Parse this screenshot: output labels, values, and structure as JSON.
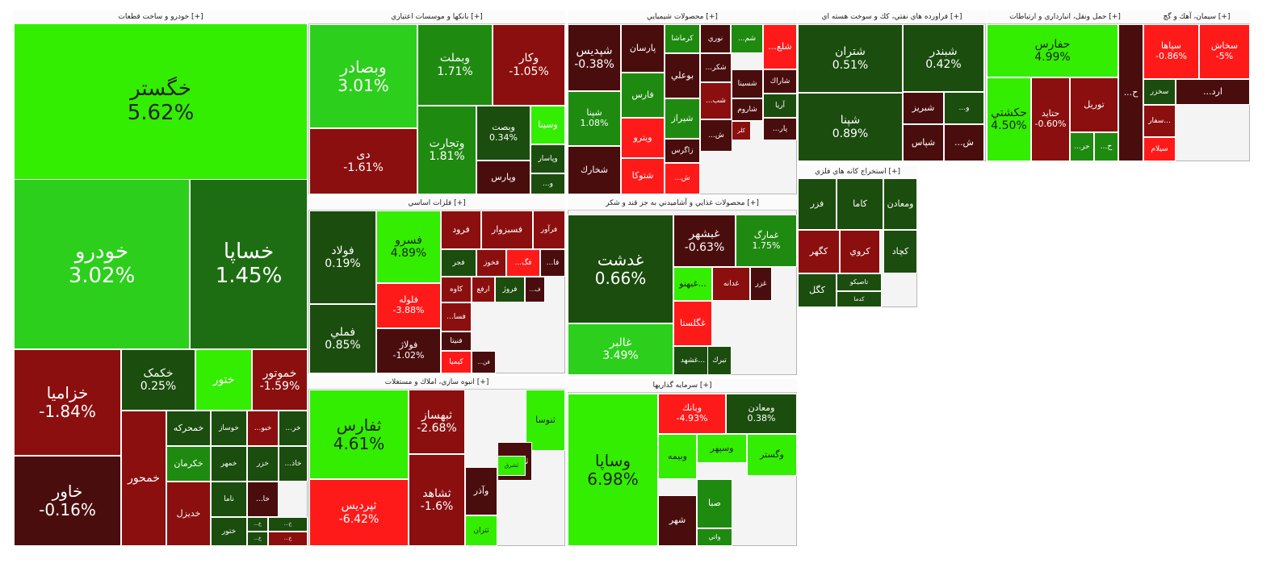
{
  "chart_data": {
    "type": "treemap",
    "title": "",
    "color_scale": {
      "positive_max": "#33ee00",
      "positive_mid": "#1f8a10",
      "neutral": "#1b4d0e",
      "negative_mid": "#7a0a0a",
      "negative_max": "#ff1a1a"
    },
    "sectors": [
      {
        "name": "خودرو و ساخت قطعات [+]",
        "tiles": [
          {
            "name": "خگستر",
            "pct": "5.62%",
            "color": "#33ee00",
            "text": "#222"
          },
          {
            "name": "خودرو",
            "pct": "3.02%",
            "color": "#2ccf1c"
          },
          {
            "name": "خساپا",
            "pct": "1.45%",
            "color": "#1d6e12"
          },
          {
            "name": "خزاميا",
            "pct": "-1.84%",
            "color": "#8b0f0f"
          },
          {
            "name": "خاور",
            "pct": "-0.16%",
            "color": "#4a0d0d"
          },
          {
            "name": "خکمک",
            "pct": "0.25%",
            "color": "#1b4d0e"
          },
          {
            "name": "ختور",
            "pct": "",
            "color": "#33ee00"
          },
          {
            "name": "خموتور",
            "pct": "-1.59%",
            "color": "#8b0f0f"
          },
          {
            "name": "خمحور",
            "pct": "",
            "color": "#8b0f0f"
          },
          {
            "name": "خمحركه",
            "pct": "",
            "color": "#1b4d0e"
          },
          {
            "name": "خوساز",
            "pct": "",
            "color": "#1b4d0e"
          },
          {
            "name": "...خبو",
            "pct": "",
            "color": "#8b0f0f"
          },
          {
            "name": "...خر",
            "pct": "",
            "color": "#1b4d0e"
          },
          {
            "name": "خكرمان",
            "pct": "",
            "color": "#1f8a10"
          },
          {
            "name": "خمهر",
            "pct": "",
            "color": "#1b4d0e"
          },
          {
            "name": "خزر",
            "pct": "",
            "color": "#1b4d0e"
          },
          {
            "name": "...خاذ",
            "pct": "",
            "color": "#1b4d0e"
          },
          {
            "name": "ناما",
            "pct": "",
            "color": "#1b4d0e"
          },
          {
            "name": "...خا",
            "pct": "",
            "color": "#4a0d0d"
          },
          {
            "name": "خديزل",
            "pct": "",
            "color": "#8b0f0f"
          },
          {
            "name": "ختور",
            "pct": "",
            "color": "#1b4d0e"
          },
          {
            "name": "...خ",
            "pct": "",
            "color": "#1b4d0e"
          },
          {
            "name": "...خ",
            "pct": "",
            "color": "#1b4d0e"
          },
          {
            "name": "...خ",
            "pct": "",
            "color": "#1b4d0e"
          },
          {
            "name": "...خ",
            "pct": "",
            "color": "#8b0f0f"
          }
        ]
      },
      {
        "name": "بانكها و موسسات اعتباري [+]",
        "tiles": [
          {
            "name": "وبصادر",
            "pct": "3.01%",
            "color": "#2ccf1c"
          },
          {
            "name": "دی",
            "pct": "-1.61%",
            "color": "#8b0f0f"
          },
          {
            "name": "وبملت",
            "pct": "1.71%",
            "color": "#1f8a10"
          },
          {
            "name": "وتجارت",
            "pct": "1.81%",
            "color": "#1f8a10"
          },
          {
            "name": "وكار",
            "pct": "-1.05%",
            "color": "#8b0f0f"
          },
          {
            "name": "وبصت",
            "pct": "0.34%",
            "color": "#1b4d0e"
          },
          {
            "name": "وسينا",
            "pct": "",
            "color": "#33ee00"
          },
          {
            "name": "وپاسار",
            "pct": "",
            "color": "#1b4d0e"
          },
          {
            "name": "وپارس",
            "pct": "",
            "color": "#4a0d0d"
          },
          {
            "name": "...و",
            "pct": "",
            "color": "#1b4d0e"
          }
        ]
      },
      {
        "name": "محصولات شيميايي [+]",
        "tiles": [
          {
            "name": "شپديس",
            "pct": "-0.38%",
            "color": "#4a0d0d"
          },
          {
            "name": "پارسان",
            "pct": "",
            "color": "#4a0d0d"
          },
          {
            "name": "كرماشا",
            "pct": "",
            "color": "#1f8a10"
          },
          {
            "name": "نوري",
            "pct": "",
            "color": "#4a0d0d"
          },
          {
            "name": "...شم",
            "pct": "",
            "color": "#1f8a10"
          },
          {
            "name": "...شلع",
            "pct": "",
            "color": "#ff1a1a"
          },
          {
            "name": "شپنا",
            "pct": "1.08%",
            "color": "#1f8a10"
          },
          {
            "name": "فارس",
            "pct": "",
            "color": "#1f8a10"
          },
          {
            "name": "بوعلي",
            "pct": "",
            "color": "#4a0d0d"
          },
          {
            "name": "...شكر",
            "pct": "",
            "color": "#4a0d0d"
          },
          {
            "name": "شسينا",
            "pct": "",
            "color": "#4a0d0d"
          },
          {
            "name": "شاراك",
            "pct": "",
            "color": "#4a0d0d"
          },
          {
            "name": "ويترو",
            "pct": "",
            "color": "#ff1a1a"
          },
          {
            "name": "شيراز",
            "pct": "",
            "color": "#1f8a10"
          },
          {
            "name": "...شب",
            "pct": "",
            "color": "#8b0f0f"
          },
          {
            "name": "شاروم",
            "pct": "",
            "color": "#4a0d0d"
          },
          {
            "name": "آريا",
            "pct": "",
            "color": "#1b4d0e"
          },
          {
            "name": "شخارك",
            "pct": "",
            "color": "#4a0d0d"
          },
          {
            "name": "زاگرس",
            "pct": "",
            "color": "#4a0d0d"
          },
          {
            "name": "...ش",
            "pct": "",
            "color": "#4a0d0d"
          },
          {
            "name": "كلر",
            "pct": "",
            "color": "#8b0f0f"
          },
          {
            "name": "...پار",
            "pct": "",
            "color": "#4a0d0d"
          },
          {
            "name": "شتوكا",
            "pct": "",
            "color": "#ff1a1a"
          },
          {
            "name": "...ش",
            "pct": "",
            "color": "#ff1a1a"
          }
        ]
      },
      {
        "name": "فراورده هاي نفتي، كك و سوخت هسته اي [+]",
        "tiles": [
          {
            "name": "شتران",
            "pct": "0.51%",
            "color": "#1b4d0e"
          },
          {
            "name": "شبندر",
            "pct": "0.42%",
            "color": "#1b4d0e"
          },
          {
            "name": "شبريز",
            "pct": "",
            "color": "#4a0d0d"
          },
          {
            "name": "...و",
            "pct": "",
            "color": "#1b4d0e"
          },
          {
            "name": "شپنا",
            "pct": "0.89%",
            "color": "#1b4d0e"
          },
          {
            "name": "شپاس",
            "pct": "",
            "color": "#4a0d0d"
          },
          {
            "name": "...ش",
            "pct": "",
            "color": "#4a0d0d"
          }
        ]
      },
      {
        "name": "حمل ونقل، انبارداري و ارتباطات [+]",
        "tiles": [
          {
            "name": "حفارس",
            "pct": "4.99%",
            "color": "#33ee00",
            "text": "#222"
          },
          {
            "name": "حكشتي",
            "pct": "4.50%",
            "color": "#33ee00",
            "text": "#222"
          },
          {
            "name": "حتايد",
            "pct": "-0.60%",
            "color": "#8b0f0f"
          },
          {
            "name": "توريل",
            "pct": "",
            "color": "#8b0f0f"
          },
          {
            "name": "...حر",
            "pct": "",
            "color": "#1f8a10"
          },
          {
            "name": "...ح",
            "pct": "",
            "color": "#1f8a10"
          },
          {
            "name": "...ح",
            "pct": "",
            "color": "#4a0d0d"
          }
        ]
      },
      {
        "name": "سيمان، آهك و گچ [+]",
        "tiles": [
          {
            "name": "سپاها",
            "pct": "-0.86%",
            "color": "#ff1a1a"
          },
          {
            "name": "سخاش",
            "pct": "-5%",
            "color": "#ff1a1a"
          },
          {
            "name": "سخزر",
            "pct": "",
            "color": "#1b4d0e"
          },
          {
            "name": "...ارد",
            "pct": "",
            "color": "#4a0d0d"
          },
          {
            "name": "سفار...",
            "pct": "",
            "color": "#8b0f0f"
          },
          {
            "name": "سيلام",
            "pct": "",
            "color": "#ff1a1a"
          }
        ]
      },
      {
        "name": "فلزات اساسي [+]",
        "tiles": [
          {
            "name": "فولاد",
            "pct": "0.19%",
            "color": "#1b4d0e"
          },
          {
            "name": "فسرو",
            "pct": "4.89%",
            "color": "#33ee00",
            "text": "#222"
          },
          {
            "name": "فملي",
            "pct": "0.85%",
            "color": "#1b4d0e"
          },
          {
            "name": "فلوله",
            "pct": "-3.88%",
            "color": "#ff1a1a"
          },
          {
            "name": "فولاژ",
            "pct": "-1.02%",
            "color": "#4a0d0d"
          },
          {
            "name": "فرود",
            "pct": "",
            "color": "#8b0f0f"
          },
          {
            "name": "فسبزوار",
            "pct": "",
            "color": "#8b0f0f"
          },
          {
            "name": "فرآور",
            "pct": "",
            "color": "#8b0f0f"
          },
          {
            "name": "فجر",
            "pct": "",
            "color": "#1b4d0e"
          },
          {
            "name": "فخوز",
            "pct": "",
            "color": "#8b0f0f"
          },
          {
            "name": "...فگ",
            "pct": "",
            "color": "#ff1a1a"
          },
          {
            "name": "...فا",
            "pct": "",
            "color": "#4a0d0d"
          },
          {
            "name": "كاوه",
            "pct": "",
            "color": "#8b0f0f"
          },
          {
            "name": "ارفع",
            "pct": "",
            "color": "#8b0f0f"
          },
          {
            "name": "فروژ",
            "pct": "",
            "color": "#1b4d0e"
          },
          {
            "name": "...ف",
            "pct": "",
            "color": "#4a0d0d"
          },
          {
            "name": "...فسا",
            "pct": "",
            "color": "#8b0f0f"
          },
          {
            "name": "فنيتا",
            "pct": "",
            "color": "#4a0d0d"
          },
          {
            "name": "كيميا",
            "pct": "",
            "color": "#ff1a1a"
          },
          {
            "name": "...فن",
            "pct": "",
            "color": "#4a0d0d"
          }
        ]
      },
      {
        "name": "محصولات غذايي و آشاميدني به جز قند و شكر [+]",
        "tiles": [
          {
            "name": "غدشت",
            "pct": "0.66%",
            "color": "#1b4d0e"
          },
          {
            "name": "غالبر",
            "pct": "3.49%",
            "color": "#2ccf1c"
          },
          {
            "name": "غبشهر",
            "pct": "-0.63%",
            "color": "#4a0d0d"
          },
          {
            "name": "غمارگ",
            "pct": "1.75%",
            "color": "#1f8a10"
          },
          {
            "name": "غبهنو...",
            "pct": "",
            "color": "#33ee00",
            "text": "#222"
          },
          {
            "name": "غدانه",
            "pct": "",
            "color": "#8b0f0f"
          },
          {
            "name": "غزر",
            "pct": "",
            "color": "#4a0d0d"
          },
          {
            "name": "غگلستا",
            "pct": "",
            "color": "#ff1a1a"
          },
          {
            "name": "غشهد...",
            "pct": "",
            "color": "#1b4d0e"
          },
          {
            "name": "تبرك",
            "pct": "",
            "color": "#1b4d0e"
          }
        ]
      },
      {
        "name": "استخراج كانه هاي فلزي [+]",
        "tiles": [
          {
            "name": "فزر",
            "pct": "",
            "color": "#1b4d0e"
          },
          {
            "name": "كاما",
            "pct": "",
            "color": "#1b4d0e"
          },
          {
            "name": "ومعادن",
            "pct": "",
            "color": "#1b4d0e"
          },
          {
            "name": "كگهر",
            "pct": "",
            "color": "#8b0f0f"
          },
          {
            "name": "كروي",
            "pct": "",
            "color": "#8b0f0f"
          },
          {
            "name": "كچاد",
            "pct": "",
            "color": "#1b4d0e"
          },
          {
            "name": "كگل",
            "pct": "",
            "color": "#1b4d0e"
          },
          {
            "name": "تاصيكو",
            "pct": "",
            "color": "#1b4d0e"
          },
          {
            "name": "كدما",
            "pct": "",
            "color": "#1b4d0e"
          }
        ]
      },
      {
        "name": "سرمايه گذاريها [+]",
        "tiles": [
          {
            "name": "وساپا",
            "pct": "6.98%",
            "color": "#33ee00",
            "text": "#222"
          },
          {
            "name": "وبانك",
            "pct": "-4.93%",
            "color": "#ff1a1a"
          },
          {
            "name": "ومعادن",
            "pct": "0.38%",
            "color": "#1b4d0e"
          },
          {
            "name": "وبيمه",
            "pct": "",
            "color": "#33ee00",
            "text": "#222"
          },
          {
            "name": "وسپهر",
            "pct": "",
            "color": "#33ee00",
            "text": "#222"
          },
          {
            "name": "وگستر",
            "pct": "",
            "color": "#33ee00",
            "text": "#222"
          },
          {
            "name": "شهر",
            "pct": "",
            "color": "#4a0d0d"
          },
          {
            "name": "صبا",
            "pct": "",
            "color": "#1f8a10"
          },
          {
            "name": "واتي",
            "pct": "",
            "color": "#1f8a10"
          }
        ]
      },
      {
        "name": "انبوه سازي، املاك و مستغلات [+]",
        "tiles": [
          {
            "name": "ثفارس",
            "pct": "4.61%",
            "color": "#33ee00",
            "text": "#222"
          },
          {
            "name": "ثپردیس",
            "pct": "-6.42%",
            "color": "#ff1a1a"
          },
          {
            "name": "ثبهساز",
            "pct": "-2.68%",
            "color": "#8b0f0f"
          },
          {
            "name": "ثشاهد",
            "pct": "-1.6%",
            "color": "#8b0f0f"
          },
          {
            "name": "ثنوسا",
            "pct": "",
            "color": "#33ee00",
            "text": "#222"
          },
          {
            "name": "ثمسكن",
            "pct": "",
            "color": "#4a0d0d"
          },
          {
            "name": "ثشرق",
            "pct": "",
            "color": "#33ee00",
            "text": "#222"
          },
          {
            "name": "وآذر",
            "pct": "",
            "color": "#4a0d0d"
          },
          {
            "name": "ثتران",
            "pct": "",
            "color": "#33ee00",
            "text": "#222"
          }
        ]
      }
    ]
  }
}
